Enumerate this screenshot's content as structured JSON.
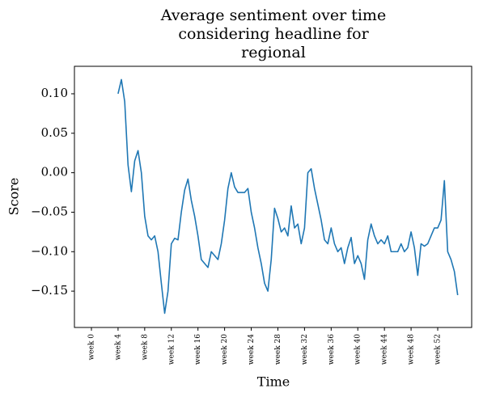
{
  "chart_data": {
    "type": "line",
    "title": [
      "Average sentiment over time",
      "considering headline for",
      "regional"
    ],
    "xlabel": "Time",
    "ylabel": "Score",
    "x": [
      4.0,
      4.5,
      5.0,
      5.5,
      6.0,
      6.5,
      7.0,
      7.5,
      8.0,
      8.5,
      9.0,
      9.5,
      10.0,
      10.5,
      11.0,
      11.5,
      12.0,
      12.5,
      13.0,
      13.5,
      14.0,
      14.5,
      15.0,
      15.5,
      16.0,
      16.5,
      17.0,
      17.5,
      18.0,
      18.5,
      19.0,
      19.5,
      20.0,
      20.5,
      21.0,
      21.5,
      22.0,
      22.5,
      23.0,
      23.5,
      24.0,
      24.5,
      25.0,
      25.5,
      26.0,
      26.5,
      27.0,
      27.5,
      28.0,
      28.5,
      29.0,
      29.5,
      30.0,
      30.5,
      31.0,
      31.5,
      32.0,
      32.5,
      33.0,
      33.5,
      34.0,
      34.5,
      35.0,
      35.5,
      36.0,
      36.5,
      37.0,
      37.5,
      38.0,
      38.5,
      39.0,
      39.5,
      40.0,
      40.5,
      41.0,
      41.5,
      42.0,
      42.5,
      43.0,
      43.5,
      44.0,
      44.5,
      45.0,
      45.5,
      46.0,
      46.5,
      47.0,
      47.5,
      48.0,
      48.5,
      49.0,
      49.5,
      50.0,
      50.5,
      51.0,
      51.5,
      52.0,
      52.5,
      53.0,
      53.5,
      54.0,
      54.5,
      55.0
    ],
    "series": [
      {
        "name": "regional",
        "color": "#1f77b4",
        "values": [
          0.1,
          0.118,
          0.09,
          0.01,
          -0.024,
          0.015,
          0.028,
          0.0,
          -0.055,
          -0.08,
          -0.085,
          -0.08,
          -0.1,
          -0.14,
          -0.178,
          -0.15,
          -0.09,
          -0.083,
          -0.085,
          -0.05,
          -0.022,
          -0.008,
          -0.035,
          -0.055,
          -0.08,
          -0.11,
          -0.115,
          -0.12,
          -0.1,
          -0.105,
          -0.11,
          -0.09,
          -0.06,
          -0.02,
          0.0,
          -0.018,
          -0.025,
          -0.025,
          -0.025,
          -0.02,
          -0.05,
          -0.07,
          -0.095,
          -0.115,
          -0.14,
          -0.15,
          -0.11,
          -0.045,
          -0.058,
          -0.075,
          -0.07,
          -0.08,
          -0.042,
          -0.07,
          -0.065,
          -0.09,
          -0.07,
          0.0,
          0.005,
          -0.02,
          -0.04,
          -0.06,
          -0.085,
          -0.09,
          -0.07,
          -0.09,
          -0.1,
          -0.095,
          -0.115,
          -0.095,
          -0.082,
          -0.115,
          -0.105,
          -0.115,
          -0.135,
          -0.085,
          -0.065,
          -0.08,
          -0.09,
          -0.085,
          -0.09,
          -0.08,
          -0.1,
          -0.1,
          -0.1,
          -0.09,
          -0.1,
          -0.095,
          -0.075,
          -0.095,
          -0.13,
          -0.09,
          -0.093,
          -0.09,
          -0.08,
          -0.07,
          -0.07,
          -0.06,
          -0.01,
          -0.1,
          -0.11,
          -0.125,
          -0.155
        ]
      }
    ],
    "xlim": [
      -2.55,
      57.1
    ],
    "xticks": [
      {
        "value": 0,
        "label": "week 0"
      },
      {
        "value": 4,
        "label": "week 4"
      },
      {
        "value": 8,
        "label": "week 8"
      },
      {
        "value": 12,
        "label": "week 12"
      },
      {
        "value": 16,
        "label": "week 16"
      },
      {
        "value": 20,
        "label": "week 20"
      },
      {
        "value": 24,
        "label": "week 24"
      },
      {
        "value": 28,
        "label": "week 28"
      },
      {
        "value": 32,
        "label": "week 32"
      },
      {
        "value": 36,
        "label": "week 36"
      },
      {
        "value": 40,
        "label": "week 40"
      },
      {
        "value": 44,
        "label": "week 44"
      },
      {
        "value": 48,
        "label": "week 48"
      },
      {
        "value": 52,
        "label": "week 52"
      }
    ],
    "ylim": [
      -0.196,
      0.1348
    ],
    "yticks": [
      {
        "value": 0.1,
        "label": "0.10"
      },
      {
        "value": 0.05,
        "label": "0.05"
      },
      {
        "value": 0,
        "label": "0.00"
      },
      {
        "value": -0.05,
        "label": "−0.05"
      },
      {
        "value": -0.1,
        "label": "−0.10"
      },
      {
        "value": -0.15,
        "label": "−0.15"
      }
    ],
    "grid": false
  }
}
